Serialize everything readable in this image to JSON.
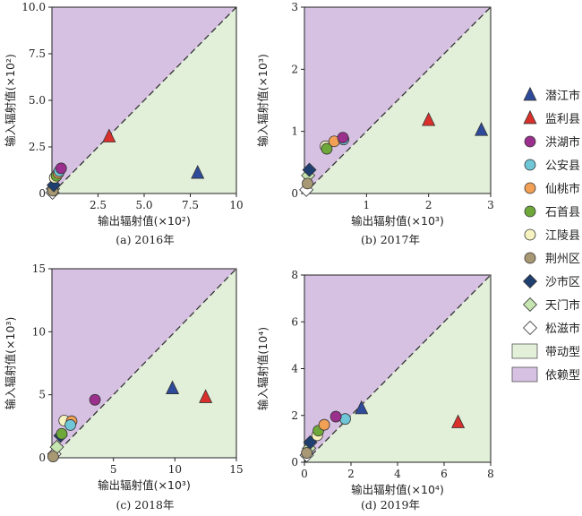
{
  "colors": {
    "upper_region": "#d6c1e2",
    "lower_region": "#e2efd9",
    "diagonal": "#333333"
  },
  "legend": {
    "items": [
      {
        "label": "潜江市",
        "shape": "triangle",
        "color": "#2e4a9b"
      },
      {
        "label": "监利县",
        "shape": "triangle",
        "color": "#d9302c"
      },
      {
        "label": "洪湖市",
        "shape": "circle",
        "color": "#9b2f8e"
      },
      {
        "label": "公安县",
        "shape": "circle",
        "color": "#6ec6d6"
      },
      {
        "label": "仙桃市",
        "shape": "circle",
        "color": "#f2a055"
      },
      {
        "label": "石首县",
        "shape": "circle",
        "color": "#6fa83a"
      },
      {
        "label": "江陵县",
        "shape": "circle",
        "color": "#f7f3c0"
      },
      {
        "label": "荆州区",
        "shape": "circle",
        "color": "#a89874"
      },
      {
        "label": "沙市区",
        "shape": "diamond",
        "color": "#1f3f70"
      },
      {
        "label": "天门市",
        "shape": "diamond",
        "color": "#c6e5b0"
      },
      {
        "label": "松滋市",
        "shape": "diamond",
        "color": "#ffffff"
      }
    ],
    "regions": [
      {
        "label": "带动型",
        "color": "#e2efd9"
      },
      {
        "label": "依赖型",
        "color": "#d6c1e2"
      }
    ]
  },
  "chart_data": [
    {
      "type": "scatter",
      "caption": "(a) 2016年",
      "xlabel": "输出辐射值(×10²)",
      "ylabel": "输入辐射值(×10²)",
      "xlim": [
        0,
        10
      ],
      "ylim": [
        0,
        10
      ],
      "xticks": [
        "2.5",
        "5.0",
        "7.5",
        "10"
      ],
      "xtick_values": [
        2.5,
        5.0,
        7.5,
        10
      ],
      "yticks": [
        "0",
        "2.5",
        "5.0",
        "7.5",
        "10.0"
      ],
      "ytick_values": [
        0,
        2.5,
        5.0,
        7.5,
        10.0
      ],
      "points": [
        {
          "name": "潜江市",
          "x": 7.9,
          "y": 1.1
        },
        {
          "name": "监利县",
          "x": 3.1,
          "y": 3.05
        },
        {
          "name": "洪湖市",
          "x": 0.5,
          "y": 1.35
        },
        {
          "name": "公安县",
          "x": 0.4,
          "y": 1.2
        },
        {
          "name": "仙桃市",
          "x": 0.35,
          "y": 1.1
        },
        {
          "name": "石首县",
          "x": 0.25,
          "y": 0.95
        },
        {
          "name": "江陵县",
          "x": 0.15,
          "y": 0.85
        },
        {
          "name": "沙市区",
          "x": 0.1,
          "y": 0.45
        },
        {
          "name": "荆州区",
          "x": 0.05,
          "y": 0.15
        },
        {
          "name": "天门市",
          "x": 0.05,
          "y": 0.25
        },
        {
          "name": "松滋市",
          "x": 0.03,
          "y": 0.05
        }
      ]
    },
    {
      "type": "scatter",
      "caption": "(b) 2017年",
      "xlabel": "输出辐射值(×10³)",
      "ylabel": "输入辐射值(×10³)",
      "xlim": [
        0,
        3
      ],
      "ylim": [
        0,
        3
      ],
      "xticks": [
        "1",
        "2",
        "3"
      ],
      "xtick_values": [
        1,
        2,
        3
      ],
      "yticks": [
        "0",
        "1",
        "2",
        "3"
      ],
      "ytick_values": [
        0,
        1,
        2,
        3
      ],
      "points": [
        {
          "name": "潜江市",
          "x": 2.85,
          "y": 1.02
        },
        {
          "name": "监利县",
          "x": 2.0,
          "y": 1.18
        },
        {
          "name": "洪湖市",
          "x": 0.62,
          "y": 0.9
        },
        {
          "name": "公安县",
          "x": 0.63,
          "y": 0.87
        },
        {
          "name": "仙桃市",
          "x": 0.48,
          "y": 0.84
        },
        {
          "name": "石首县",
          "x": 0.36,
          "y": 0.72
        },
        {
          "name": "江陵县",
          "x": 0.34,
          "y": 0.76
        },
        {
          "name": "沙市区",
          "x": 0.08,
          "y": 0.38
        },
        {
          "name": "荆州区",
          "x": 0.05,
          "y": 0.16
        },
        {
          "name": "天门市",
          "x": 0.06,
          "y": 0.29
        },
        {
          "name": "松滋市",
          "x": 0.03,
          "y": 0.06
        }
      ]
    },
    {
      "type": "scatter",
      "caption": "(c) 2018年",
      "xlabel": "输出辐射值(×10³)",
      "ylabel": "输入辐射值(×10³)",
      "xlim": [
        0,
        15
      ],
      "ylim": [
        0,
        15
      ],
      "xticks": [
        "5",
        "10",
        "15"
      ],
      "xtick_values": [
        5,
        10,
        15
      ],
      "yticks": [
        "0",
        "5",
        "10",
        "15"
      ],
      "ytick_values": [
        0,
        5,
        10,
        15
      ],
      "points": [
        {
          "name": "潜江市",
          "x": 9.8,
          "y": 5.5
        },
        {
          "name": "监利县",
          "x": 12.5,
          "y": 4.8
        },
        {
          "name": "洪湖市",
          "x": 3.5,
          "y": 4.6
        },
        {
          "name": "公安县",
          "x": 1.5,
          "y": 2.6
        },
        {
          "name": "仙桃市",
          "x": 1.6,
          "y": 2.9
        },
        {
          "name": "石首县",
          "x": 0.8,
          "y": 1.9
        },
        {
          "name": "江陵县",
          "x": 1.0,
          "y": 2.95
        },
        {
          "name": "沙市区",
          "x": 0.7,
          "y": 1.75
        },
        {
          "name": "荆州区",
          "x": 0.1,
          "y": 0.1
        },
        {
          "name": "天门市",
          "x": 0.4,
          "y": 0.85
        },
        {
          "name": "松滋市",
          "x": 0.2,
          "y": 0.3
        }
      ]
    },
    {
      "type": "scatter",
      "caption": "(d) 2019年",
      "xlabel": "输出辐射值(×10⁴)",
      "ylabel": "输入辐射值(10⁴)",
      "xlim": [
        0,
        8
      ],
      "ylim": [
        0,
        8
      ],
      "xticks": [
        "0",
        "2",
        "4",
        "6",
        "8"
      ],
      "xtick_values": [
        0,
        2,
        4,
        6,
        8
      ],
      "yticks": [
        "0",
        "2",
        "4",
        "6",
        "8"
      ],
      "ytick_values": [
        0,
        2,
        4,
        6,
        8
      ],
      "points": [
        {
          "name": "潜江市",
          "x": 2.45,
          "y": 2.3
        },
        {
          "name": "监利县",
          "x": 6.6,
          "y": 1.7
        },
        {
          "name": "洪湖市",
          "x": 1.35,
          "y": 1.95
        },
        {
          "name": "公安县",
          "x": 1.75,
          "y": 1.85
        },
        {
          "name": "仙桃市",
          "x": 0.85,
          "y": 1.6
        },
        {
          "name": "石首县",
          "x": 0.6,
          "y": 1.35
        },
        {
          "name": "江陵县",
          "x": 0.55,
          "y": 1.15
        },
        {
          "name": "沙市区",
          "x": 0.25,
          "y": 0.85
        },
        {
          "name": "荆州区",
          "x": 0.1,
          "y": 0.4
        },
        {
          "name": "天门市",
          "x": 0.2,
          "y": 0.6
        },
        {
          "name": "松滋市",
          "x": 0.1,
          "y": 0.3
        }
      ]
    }
  ]
}
